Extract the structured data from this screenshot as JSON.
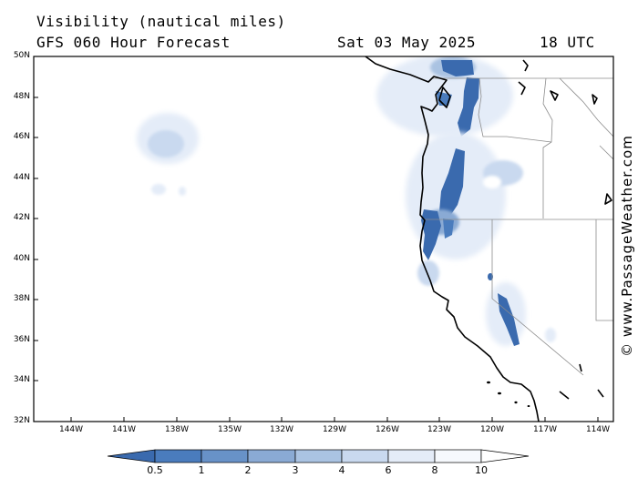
{
  "header": {
    "title": "Visibility (nautical miles)",
    "subtitle": "GFS 060 Hour Forecast",
    "date": "Sat 03 May 2025",
    "time": "18 UTC"
  },
  "map": {
    "lat_range": [
      32,
      50
    ],
    "lon_range": [
      -146,
      -113
    ],
    "lat_labels": [
      "50N",
      "48N",
      "46N",
      "44N",
      "42N",
      "40N",
      "38N",
      "36N",
      "34N",
      "32N"
    ],
    "lon_labels": [
      "144W",
      "141W",
      "138W",
      "135W",
      "132W",
      "129W",
      "126W",
      "123W",
      "120W",
      "117W",
      "114W"
    ]
  },
  "colorbar": {
    "labels": [
      "0.5",
      "1",
      "2",
      "3",
      "4",
      "6",
      "8",
      "10"
    ],
    "colors": [
      "#3a6aae",
      "#4a7cbd",
      "#6892c8",
      "#8aaad4",
      "#aac3e2",
      "#c9d9ef",
      "#e4ecf8",
      "#f6f9fd"
    ]
  },
  "credit": "© www.PassageWeather.com"
}
